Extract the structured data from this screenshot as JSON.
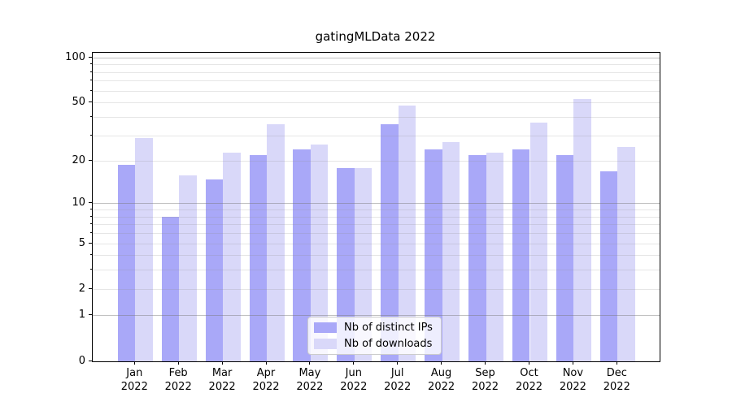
{
  "chart_data": {
    "type": "bar",
    "title": "gatingMLData 2022",
    "categories": [
      "Jan",
      "Feb",
      "Mar",
      "Apr",
      "May",
      "Jun",
      "Jul",
      "Aug",
      "Sep",
      "Oct",
      "Nov",
      "Dec"
    ],
    "category_year": "2022",
    "series": [
      {
        "name": "Nb of distinct IPs",
        "color": "#a9a8f8",
        "values": [
          19,
          8,
          15,
          22,
          24,
          18,
          36,
          24,
          22,
          24,
          22,
          17
        ]
      },
      {
        "name": "Nb of downloads",
        "color": "#d9d8f9",
        "values": [
          29,
          16,
          23,
          36,
          26,
          18,
          48,
          27,
          23,
          37,
          53,
          25
        ]
      }
    ],
    "xlabel": "",
    "ylabel": "",
    "yscale": "log1p",
    "ylim": [
      0,
      108.3
    ],
    "yticks": [
      100,
      50,
      20,
      10,
      5,
      2,
      1,
      0
    ],
    "grid_major": [
      1,
      10,
      100
    ],
    "grid_minor": [
      2,
      3,
      4,
      5,
      6,
      7,
      8,
      9,
      20,
      30,
      40,
      50,
      60,
      70,
      80,
      90
    ],
    "grid": "both",
    "legend_position": "lower center"
  }
}
